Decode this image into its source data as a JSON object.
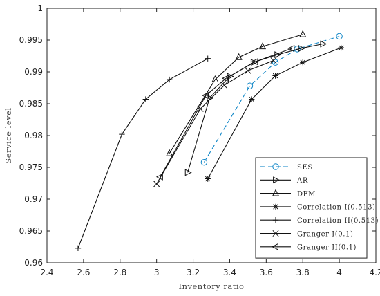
{
  "chart_data": {
    "type": "line",
    "xlabel": "Inventory ratio",
    "ylabel": "Service level",
    "xlim": [
      2.4,
      4.2
    ],
    "ylim": [
      0.96,
      1.0
    ],
    "xticks": [
      "2.4",
      "2.6",
      "2.8",
      "3",
      "3.2",
      "3.4",
      "3.6",
      "3.8",
      "4",
      "4.2"
    ],
    "yticks": [
      "0.96",
      "0.965",
      "0.97",
      "0.975",
      "0.98",
      "0.985",
      "0.99",
      "0.995",
      "1"
    ],
    "grid": false,
    "legend_position": "bottom-right",
    "series": [
      {
        "name": "SES",
        "marker": "circle",
        "color": "#0f86c7",
        "dashed": true,
        "x": [
          3.26,
          3.51,
          3.65,
          3.77,
          4.0
        ],
        "y": [
          0.9758,
          0.9878,
          0.9915,
          0.9936,
          0.9956
        ]
      },
      {
        "name": "AR",
        "marker": "triangle-right",
        "color": "#111111",
        "dashed": false,
        "x": [
          3.17,
          3.29,
          3.4,
          3.53,
          3.66,
          3.79,
          3.91
        ],
        "y": [
          0.9742,
          0.9859,
          0.9893,
          0.9915,
          0.9927,
          0.9937,
          0.9944
        ]
      },
      {
        "name": "DFM",
        "marker": "triangle-up",
        "color": "#111111",
        "dashed": false,
        "x": [
          3.07,
          3.32,
          3.45,
          3.58,
          3.8
        ],
        "y": [
          0.9772,
          0.9888,
          0.9923,
          0.994,
          0.9959
        ]
      },
      {
        "name": "Correlation I(0.513)",
        "marker": "star",
        "color": "#111111",
        "dashed": false,
        "x": [
          3.28,
          3.52,
          3.65,
          3.8,
          4.01
        ],
        "y": [
          0.9732,
          0.9857,
          0.9894,
          0.9915,
          0.9938
        ]
      },
      {
        "name": "Correlation II(0.513)",
        "marker": "plus",
        "color": "#111111",
        "dashed": false,
        "x": [
          2.57,
          2.81,
          2.94,
          3.07,
          3.28
        ],
        "y": [
          0.9623,
          0.9802,
          0.9857,
          0.9888,
          0.9921
        ]
      },
      {
        "name": "Granger I(0.1)",
        "marker": "x",
        "color": "#111111",
        "dashed": false,
        "x": [
          3.0,
          3.24,
          3.37,
          3.5,
          3.64
        ],
        "y": [
          0.9724,
          0.9842,
          0.9879,
          0.9902,
          0.9918
        ]
      },
      {
        "name": "Granger II(0.1)",
        "marker": "triangle-left",
        "color": "#111111",
        "dashed": false,
        "x": [
          3.02,
          3.27,
          3.38,
          3.54,
          3.74
        ],
        "y": [
          0.9735,
          0.9863,
          0.989,
          0.9916,
          0.9937
        ]
      }
    ]
  }
}
